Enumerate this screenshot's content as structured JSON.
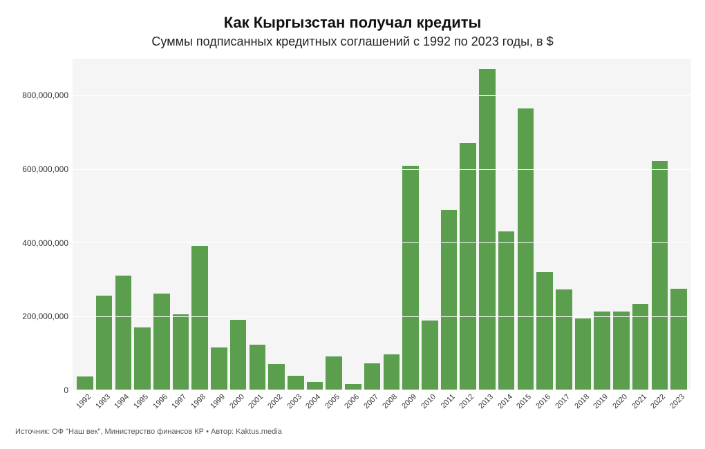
{
  "chart": {
    "type": "bar",
    "title": "Как Кыргызстан получал кредиты",
    "title_fontsize": 22,
    "subtitle": "Суммы подписанных кредитных соглашений с 1992 по 2023 годы, в $",
    "subtitle_fontsize": 18,
    "source": "Источник: ОФ \"Наш век\", Министерство финансов КР • Автор: Kaktus.media",
    "background_color": "#ffffff",
    "plot_background_color": "#f5f5f5",
    "grid_color": "#ffffff",
    "axis_line_color": "#888888",
    "bar_color": "#5a9e4e",
    "bar_width": 0.85,
    "text_color": "#333333",
    "tick_fontsize": 12,
    "x_tick_fontsize": 11,
    "x_tick_rotation": -45,
    "ylim": [
      0,
      900000000
    ],
    "ytick_step": 200000000,
    "y_ticks": [
      {
        "value": 0,
        "label": "0"
      },
      {
        "value": 200000000,
        "label": "200,000,000"
      },
      {
        "value": 400000000,
        "label": "400,000,000"
      },
      {
        "value": 600000000,
        "label": "600,000,000"
      },
      {
        "value": 800000000,
        "label": "800,000,000"
      }
    ],
    "categories": [
      "1992",
      "1993",
      "1994",
      "1995",
      "1996",
      "1997",
      "1998",
      "1999",
      "2000",
      "2001",
      "2002",
      "2003",
      "2004",
      "2005",
      "2006",
      "2007",
      "2008",
      "2009",
      "2010",
      "2011",
      "2012",
      "2013",
      "2014",
      "2015",
      "2016",
      "2017",
      "2018",
      "2019",
      "2020",
      "2021",
      "2022",
      "2023"
    ],
    "values": [
      35000000,
      255000000,
      310000000,
      170000000,
      262000000,
      205000000,
      390000000,
      115000000,
      190000000,
      122000000,
      70000000,
      37000000,
      20000000,
      90000000,
      15000000,
      72000000,
      95000000,
      608000000,
      187000000,
      488000000,
      670000000,
      872000000,
      430000000,
      765000000,
      320000000,
      272000000,
      193000000,
      213000000,
      213000000,
      233000000,
      622000000,
      275000000
    ]
  }
}
